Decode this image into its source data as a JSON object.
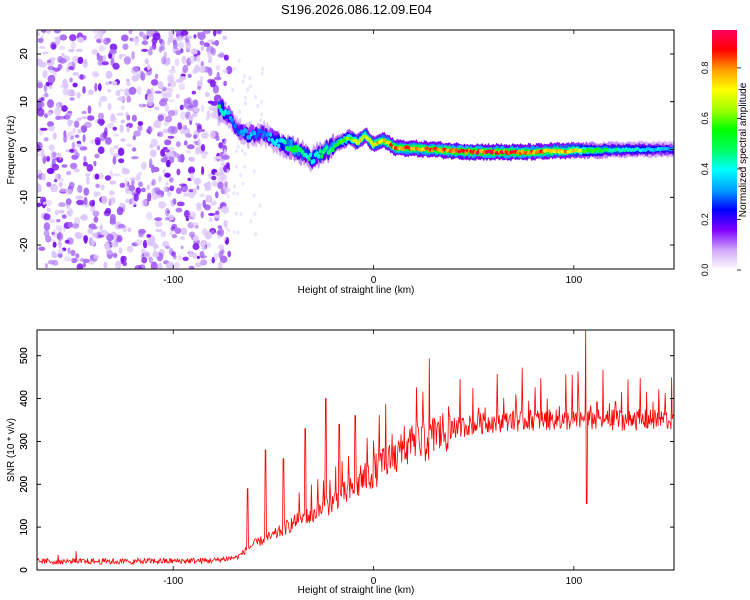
{
  "title": "S196.2026.086.12.09.E04",
  "chart_data": [
    {
      "type": "heatmap",
      "title": "S196.2026.086.12.09.E04",
      "xlabel": "Height of straight line (km)",
      "ylabel": "Frequency (Hz)",
      "xlim": [
        -168,
        150
      ],
      "ylim": [
        -25,
        25
      ],
      "xticks": [
        -100,
        0,
        100
      ],
      "xtick_labels": [
        "-100",
        "0",
        "100"
      ],
      "yticks": [
        -20,
        -10,
        0,
        10,
        20
      ],
      "ytick_labels": [
        "-20",
        "-10",
        "0",
        "10",
        "20"
      ],
      "noise_region_x": [
        -168,
        -75
      ],
      "ridge": {
        "x": [
          -77,
          -72,
          -68,
          -62,
          -56,
          -50,
          -45,
          -40,
          -35,
          -31,
          -27,
          -22,
          -17,
          -12,
          -8,
          -4,
          0,
          5,
          10,
          15,
          20,
          30,
          40,
          50,
          60,
          70,
          80,
          85,
          90,
          95,
          100,
          110,
          120,
          130,
          140,
          150
        ],
        "freq": [
          9,
          7,
          4,
          3,
          3.5,
          2,
          1,
          0.5,
          -1,
          -2,
          -1,
          0,
          1.5,
          2.5,
          1.5,
          3,
          1,
          2,
          0.5,
          0.3,
          0.2,
          0,
          -0.3,
          -0.5,
          -0.5,
          -0.6,
          -0.5,
          -0.5,
          -0.2,
          -0.4,
          -0.2,
          -0.2,
          -0.1,
          0,
          0,
          0
        ],
        "amplitude": [
          0.5,
          0.35,
          0.3,
          0.4,
          0.3,
          0.4,
          0.45,
          0.6,
          0.5,
          0.45,
          0.5,
          0.55,
          0.6,
          0.7,
          0.75,
          0.8,
          0.8,
          0.85,
          0.9,
          0.9,
          0.9,
          0.9,
          0.95,
          0.95,
          0.95,
          0.95,
          0.9,
          0.9,
          0.85,
          0.85,
          0.8,
          0.6,
          0.5,
          0.45,
          0.4,
          0.35
        ]
      },
      "colorbar": {
        "label": "Normalized spectral amplitude",
        "range": [
          0,
          0.95
        ],
        "ticks": [
          0,
          0.2,
          0.4,
          0.6,
          0.8
        ],
        "tick_labels": [
          "0.0",
          "0.2",
          "0.4",
          "0.6",
          "0.8"
        ],
        "colors": [
          "#ffffff",
          "#d0a8f8",
          "#8000ff",
          "#0000ff",
          "#00a0ff",
          "#00ffff",
          "#00ff60",
          "#00ff00",
          "#a0ff00",
          "#ffff00",
          "#ffa000",
          "#ff0000",
          "#ff0060"
        ]
      }
    },
    {
      "type": "line",
      "xlabel": "Height of straight line (km)",
      "ylabel": "SNR (10 * v/v)",
      "xlim": [
        -168,
        150
      ],
      "ylim": [
        0,
        560
      ],
      "xticks": [
        -100,
        0,
        100
      ],
      "xtick_labels": [
        "-100",
        "0",
        "100"
      ],
      "yticks": [
        0,
        100,
        200,
        300,
        400,
        500
      ],
      "ytick_labels": [
        "0",
        "100",
        "200",
        "300",
        "400",
        "500"
      ],
      "color": "#ff0000",
      "series": [
        {
          "name": "SNR",
          "baseline_x": [
            -168,
            -120,
            -80,
            -68,
            -60,
            -50,
            -40,
            -30,
            -20,
            -10,
            0,
            10,
            20,
            30,
            40,
            50,
            60,
            80,
            100,
            120,
            150
          ],
          "baseline_y": [
            20,
            20,
            22,
            30,
            60,
            80,
            110,
            130,
            160,
            190,
            230,
            260,
            290,
            310,
            330,
            340,
            345,
            350,
            350,
            350,
            350
          ],
          "peaks_x": [
            -63,
            -54,
            -45,
            -34,
            -24,
            -17,
            -9,
            106
          ],
          "peaks_y": [
            190,
            280,
            260,
            330,
            400,
            340,
            360,
            560
          ]
        }
      ]
    }
  ]
}
